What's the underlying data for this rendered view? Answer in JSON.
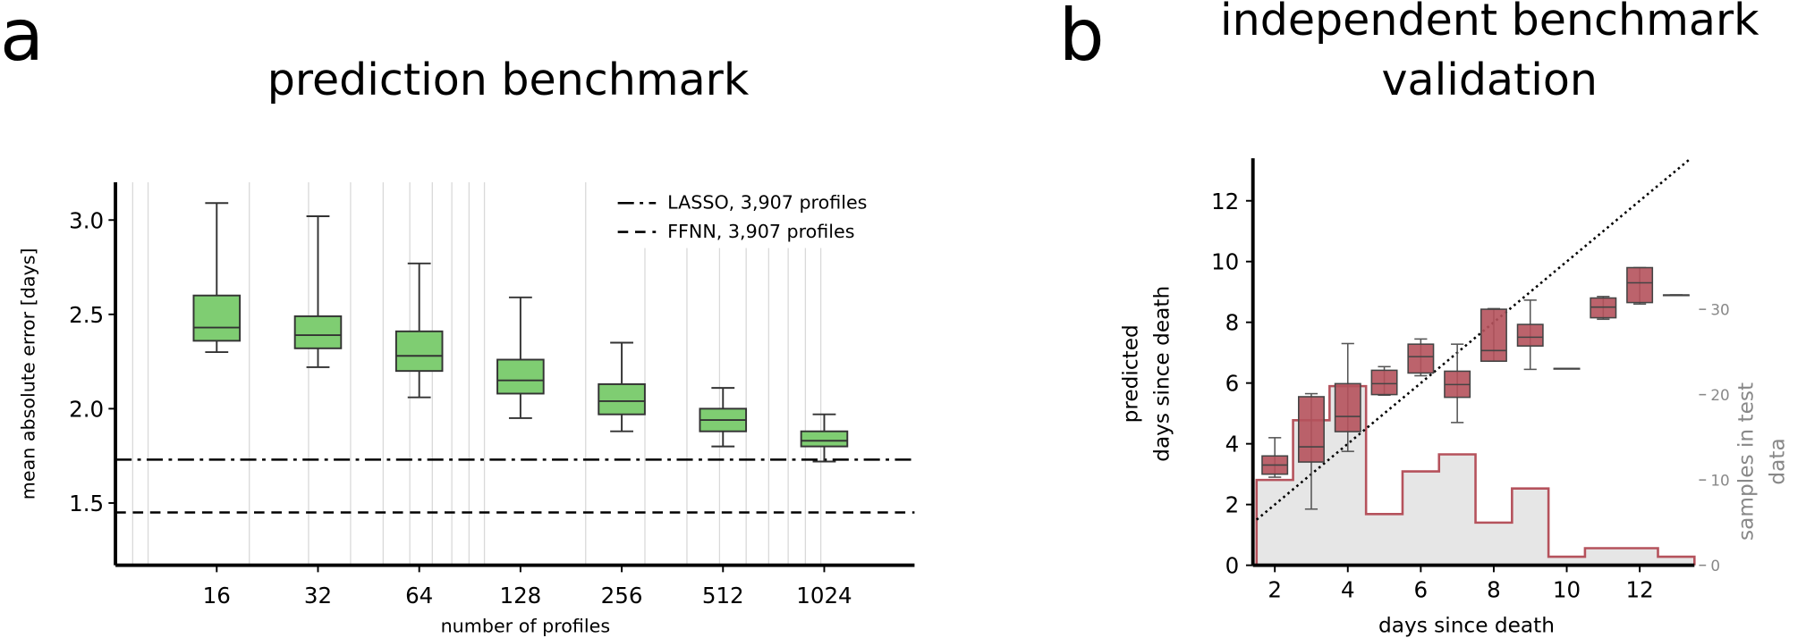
{
  "panel_a": {
    "letter": "a",
    "title": "prediction benchmark"
  },
  "panel_b": {
    "letter": "b",
    "title_line1": "independent benchmark",
    "title_line2": "validation"
  },
  "colors": {
    "box_a": "#7fcd72",
    "box_b": "#b5525c",
    "hist_fill": "#e6e6e6",
    "hist_edge": "#b5525c",
    "right_axis": "#888888"
  },
  "chart_data": [
    {
      "type": "box",
      "x_scale": "log",
      "grid": "vertical minor",
      "xlabel": "number of profiles",
      "ylabel": "mean absolute error [days]",
      "ylim": [
        1.17,
        3.2
      ],
      "xlim": [
        8,
        1900
      ],
      "yticks": [
        1.5,
        2.0,
        2.5,
        3.0
      ],
      "ytick_labels": [
        "1.5",
        "2.0",
        "2.5",
        "3.0"
      ],
      "categories": [
        "16",
        "32",
        "64",
        "128",
        "256",
        "512",
        "1024"
      ],
      "x": [
        16,
        32,
        64,
        128,
        256,
        512,
        1024
      ],
      "boxes": [
        {
          "whislo": 2.3,
          "q1": 2.36,
          "med": 2.43,
          "q3": 2.6,
          "whishi": 3.09
        },
        {
          "whislo": 2.22,
          "q1": 2.32,
          "med": 2.39,
          "q3": 2.49,
          "whishi": 3.02
        },
        {
          "whislo": 2.06,
          "q1": 2.2,
          "med": 2.28,
          "q3": 2.41,
          "whishi": 2.77
        },
        {
          "whislo": 1.95,
          "q1": 2.08,
          "med": 2.15,
          "q3": 2.26,
          "whishi": 2.59
        },
        {
          "whislo": 1.88,
          "q1": 1.97,
          "med": 2.04,
          "q3": 2.13,
          "whishi": 2.35
        },
        {
          "whislo": 1.8,
          "q1": 1.88,
          "med": 1.94,
          "q3": 2.0,
          "whishi": 2.11
        },
        {
          "whislo": 1.72,
          "q1": 1.8,
          "med": 1.83,
          "q3": 1.88,
          "whishi": 1.97
        }
      ],
      "reference_lines": [
        {
          "name": "LASSO, 3,907 profiles",
          "y": 1.73,
          "style": "dashdot"
        },
        {
          "name": "FFNN, 3,907 profiles",
          "y": 1.45,
          "style": "dashed"
        }
      ],
      "legend": "top-right"
    },
    {
      "type": "box+histogram",
      "xlabel": "days since death",
      "ylabel_line1": "predicted",
      "ylabel_line2": "days since death",
      "y2label_line1": "samples in test",
      "y2label_line2": "data",
      "xlim": [
        1.4,
        13.5
      ],
      "ylim": [
        0,
        13.4
      ],
      "y2lim": [
        0,
        47.7
      ],
      "xticks": [
        2,
        4,
        6,
        8,
        10,
        12
      ],
      "xtick_labels": [
        "2",
        "4",
        "6",
        "8",
        "10",
        "12"
      ],
      "yticks": [
        0,
        2,
        4,
        6,
        8,
        10,
        12
      ],
      "ytick_labels": [
        "0",
        "2",
        "4",
        "6",
        "8",
        "10",
        "12"
      ],
      "y2ticks": [
        0,
        10,
        20,
        30
      ],
      "y2tick_labels": [
        "0",
        "10",
        "20",
        "30"
      ],
      "identity_line": {
        "from": 1.5,
        "to": 13.4,
        "style": "dotted"
      },
      "x": [
        2,
        3,
        4,
        5,
        6,
        7,
        8,
        9,
        10,
        11,
        12,
        13
      ],
      "boxes": [
        {
          "whislo": 2.9,
          "q1": 3.0,
          "med": 3.3,
          "q3": 3.6,
          "whishi": 4.2
        },
        {
          "whislo": 1.85,
          "q1": 3.4,
          "med": 3.9,
          "q3": 5.55,
          "whishi": 5.65
        },
        {
          "whislo": 3.75,
          "q1": 4.4,
          "med": 4.9,
          "q3": 5.98,
          "whishi": 7.3
        },
        {
          "whislo": 5.6,
          "q1": 5.62,
          "med": 5.98,
          "q3": 6.42,
          "whishi": 6.54
        },
        {
          "whislo": 6.24,
          "q1": 6.33,
          "med": 6.87,
          "q3": 7.28,
          "whishi": 7.45
        },
        {
          "whislo": 4.7,
          "q1": 5.53,
          "med": 5.95,
          "q3": 6.39,
          "whishi": 7.28
        },
        {
          "whislo": 6.72,
          "q1": 6.72,
          "med": 7.07,
          "q3": 8.43,
          "whishi": 8.45
        },
        {
          "whislo": 6.45,
          "q1": 7.22,
          "med": 7.51,
          "q3": 7.93,
          "whishi": 8.73
        },
        {
          "whislo": 6.48,
          "q1": 6.48,
          "med": 6.48,
          "q3": 6.48,
          "whishi": 6.48
        },
        {
          "whislo": 8.1,
          "q1": 8.15,
          "med": 8.5,
          "q3": 8.8,
          "whishi": 8.85
        },
        {
          "whislo": 8.6,
          "q1": 8.65,
          "med": 9.3,
          "q3": 9.8,
          "whishi": 9.8
        },
        {
          "whislo": 8.9,
          "q1": 8.9,
          "med": 8.9,
          "q3": 8.9,
          "whishi": 8.9
        }
      ],
      "histogram": {
        "bin_edges": [
          1.5,
          2.5,
          3.5,
          4.5,
          5.5,
          6.5,
          7.5,
          8.5,
          9.5,
          10.5,
          11.5,
          12.5,
          13.5
        ],
        "counts": [
          10,
          17,
          21,
          6,
          11,
          13,
          5,
          9,
          1,
          2,
          2,
          1
        ]
      }
    }
  ]
}
